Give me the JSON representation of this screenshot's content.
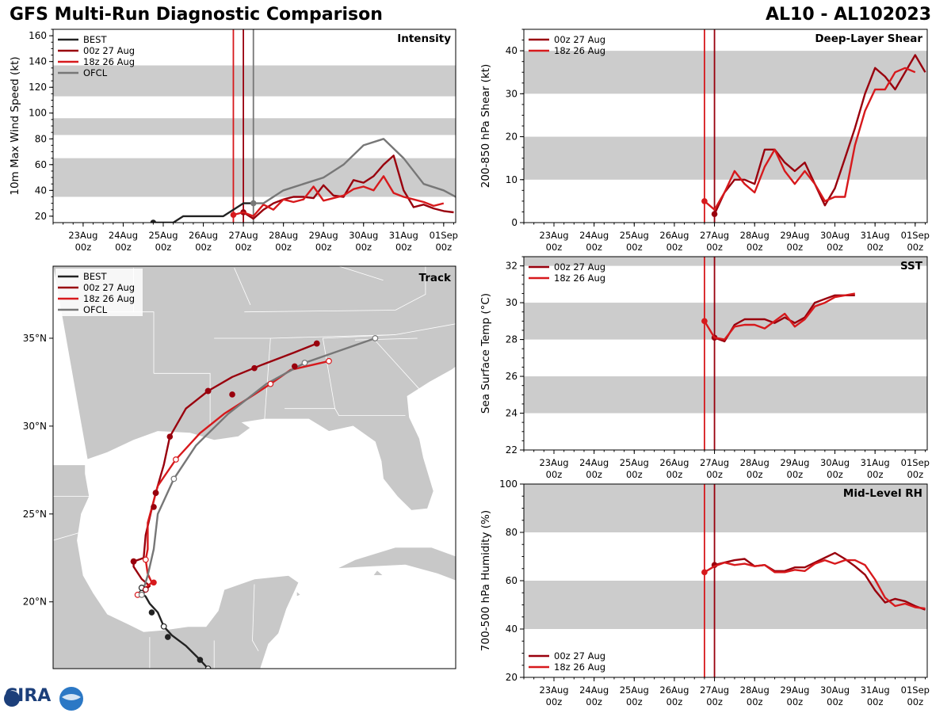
{
  "header": {
    "title_left": "GFS Multi-Run Diagnostic Comparison",
    "title_right": "AL10 - AL102023"
  },
  "logo_text": "CIRA",
  "colors": {
    "best": "#222222",
    "run00z": "#99000d",
    "run18z": "#d7191c",
    "ofcl": "#777777",
    "band": "#cccccc",
    "land": "#c8c8c8"
  },
  "time_axis": {
    "tick_labels": [
      "23Aug\n00z",
      "24Aug\n00z",
      "25Aug\n00z",
      "26Aug\n00z",
      "27Aug\n00z",
      "28Aug\n00z",
      "29Aug\n00z",
      "30Aug\n00z",
      "31Aug\n00z",
      "01Sep\n00z"
    ],
    "range_days": [
      -0.75,
      9.3
    ]
  },
  "chart_data": [
    {
      "id": "intensity",
      "type": "line",
      "title": "Intensity",
      "ylabel": "10m Max Wind Speed (kt)",
      "ylim": [
        15,
        165
      ],
      "yticks": [
        20,
        40,
        60,
        80,
        100,
        120,
        140,
        160
      ],
      "bands": [
        [
          35,
          65
        ],
        [
          83,
          96
        ],
        [
          113,
          137
        ]
      ],
      "vlines": [
        {
          "x": 3.75,
          "series": "run18z"
        },
        {
          "x": 4.0,
          "series": "run00z"
        },
        {
          "x": 4.25,
          "series": "ofcl"
        }
      ],
      "legend": [
        "BEST",
        "00z 27 Aug",
        "18z 26 Aug",
        "OFCL"
      ],
      "series": [
        {
          "name": "BEST",
          "key": "best",
          "x": [
            1.75,
            2.0,
            2.25,
            2.5,
            2.75,
            3.0,
            3.25,
            3.5,
            3.75,
            4.0,
            4.25
          ],
          "y": [
            15,
            15,
            15,
            20,
            20,
            20,
            20,
            20,
            25,
            30,
            30
          ]
        },
        {
          "name": "00z 27 Aug",
          "key": "run00z",
          "x": [
            4.0,
            4.25,
            4.5,
            4.75,
            5.0,
            5.25,
            5.5,
            5.75,
            6.0,
            6.25,
            6.5,
            6.75,
            7.0,
            7.25,
            7.5,
            7.75,
            8.0,
            8.25,
            8.5,
            8.75,
            9.0,
            9.25
          ],
          "y": [
            23,
            18,
            25,
            30,
            33,
            35,
            35,
            34,
            44,
            36,
            35,
            48,
            46,
            51,
            60,
            67,
            40,
            27,
            29,
            26,
            24,
            23
          ]
        },
        {
          "name": "18z 26 Aug",
          "key": "run18z",
          "x": [
            3.75,
            4.0,
            4.25,
            4.5,
            4.75,
            5.0,
            5.25,
            5.5,
            5.75,
            6.0,
            6.25,
            6.5,
            6.75,
            7.0,
            7.25,
            7.5,
            7.75,
            8.0,
            8.25,
            8.5,
            8.75,
            9.0
          ],
          "y": [
            21,
            23,
            20,
            29,
            25,
            33,
            31,
            33,
            43,
            32,
            34,
            36,
            41,
            43,
            40,
            51,
            38,
            35,
            33,
            31,
            28,
            30
          ]
        },
        {
          "name": "OFCL",
          "key": "ofcl",
          "x": [
            4.25,
            4.5,
            5.0,
            5.5,
            6.0,
            6.5,
            7.0,
            7.5,
            8.0,
            8.5,
            9.0,
            9.3
          ],
          "y": [
            30,
            30,
            40,
            45,
            50,
            60,
            75,
            80,
            65,
            45,
            40,
            35
          ]
        }
      ]
    },
    {
      "id": "shear",
      "type": "line",
      "title": "Deep-Layer Shear",
      "ylabel": "200-850 hPa Shear (kt)",
      "ylim": [
        0,
        45
      ],
      "yticks": [
        0,
        10,
        20,
        30,
        40
      ],
      "bands": [
        [
          10,
          20
        ],
        [
          30,
          40
        ]
      ],
      "vlines": [
        {
          "x": 3.75,
          "series": "run18z"
        },
        {
          "x": 4.0,
          "series": "run00z"
        }
      ],
      "legend": [
        "00z 27 Aug",
        "18z 26 Aug"
      ],
      "series": [
        {
          "name": "00z 27 Aug",
          "key": "run00z",
          "x": [
            4.0,
            4.25,
            4.5,
            4.75,
            5.0,
            5.25,
            5.5,
            5.75,
            6.0,
            6.25,
            6.5,
            6.75,
            7.0,
            7.25,
            7.5,
            7.75,
            8.0,
            8.25,
            8.5,
            8.75,
            9.0,
            9.25
          ],
          "y": [
            2,
            7,
            10,
            10,
            9,
            17,
            17,
            14,
            12,
            14,
            9,
            4,
            8,
            15,
            22,
            30,
            36,
            34,
            31,
            35,
            39,
            35
          ]
        },
        {
          "name": "18z 26 Aug",
          "key": "run18z",
          "x": [
            3.75,
            4.0,
            4.25,
            4.5,
            4.75,
            5.0,
            5.25,
            5.5,
            5.75,
            6.0,
            6.25,
            6.5,
            6.75,
            7.0,
            7.25,
            7.5,
            7.75,
            8.0,
            8.25,
            8.5,
            8.75,
            9.0
          ],
          "y": [
            5,
            3,
            7,
            12,
            9,
            7,
            13,
            17,
            12,
            9,
            12,
            9,
            5,
            6,
            6,
            18,
            26,
            31,
            31,
            35,
            36,
            35
          ]
        }
      ]
    },
    {
      "id": "sst",
      "type": "line",
      "title": "SST",
      "ylabel": "Sea Surface Temp (°C)",
      "ylim": [
        22,
        32.5
      ],
      "yticks": [
        22,
        24,
        26,
        28,
        30,
        32
      ],
      "bands": [
        [
          24,
          26
        ],
        [
          28,
          30
        ],
        [
          32,
          34
        ]
      ],
      "vlines": [
        {
          "x": 3.75,
          "series": "run18z"
        },
        {
          "x": 4.0,
          "series": "run00z"
        }
      ],
      "legend": [
        "00z 27 Aug",
        "18z 26 Aug"
      ],
      "series": [
        {
          "name": "00z 27 Aug",
          "key": "run00z",
          "x": [
            4.0,
            4.25,
            4.5,
            4.75,
            5.0,
            5.25,
            5.5,
            5.75,
            6.0,
            6.25,
            6.5,
            6.75,
            7.0,
            7.25,
            7.5
          ],
          "y": [
            28.1,
            27.9,
            28.8,
            29.1,
            29.1,
            29.1,
            28.9,
            29.2,
            28.9,
            29.2,
            30.0,
            30.2,
            30.4,
            30.4,
            30.4
          ]
        },
        {
          "name": "18z 26 Aug",
          "key": "run18z",
          "x": [
            3.75,
            4.0,
            4.25,
            4.5,
            4.75,
            5.0,
            5.25,
            5.5,
            5.75,
            6.0,
            6.25,
            6.5,
            6.75,
            7.0,
            7.25,
            7.5
          ],
          "y": [
            29.0,
            28.1,
            28.0,
            28.7,
            28.8,
            28.8,
            28.6,
            29.0,
            29.4,
            28.7,
            29.1,
            29.8,
            30.0,
            30.3,
            30.4,
            30.5
          ]
        }
      ]
    },
    {
      "id": "rh",
      "type": "line",
      "title": "Mid-Level RH",
      "ylabel": "700-500 hPa Humidity (%)",
      "ylim": [
        20,
        100
      ],
      "yticks": [
        20,
        40,
        60,
        80,
        100
      ],
      "bands": [
        [
          40,
          60
        ],
        [
          80,
          100
        ]
      ],
      "vlines": [
        {
          "x": 3.75,
          "series": "run18z"
        },
        {
          "x": 4.0,
          "series": "run00z"
        }
      ],
      "legend": [
        "00z 27 Aug",
        "18z 26 Aug"
      ],
      "legend_pos": "bottom-left",
      "series": [
        {
          "name": "00z 27 Aug",
          "key": "run00z",
          "x": [
            4.0,
            4.25,
            4.5,
            4.75,
            5.0,
            5.25,
            5.5,
            5.75,
            6.0,
            6.25,
            6.5,
            6.75,
            7.0,
            7.25,
            7.5,
            7.75,
            8.0,
            8.25,
            8.5,
            8.75,
            9.0,
            9.25
          ],
          "y": [
            66.5,
            67.5,
            68.5,
            69,
            66,
            66.5,
            64,
            64,
            65.5,
            65.5,
            67.5,
            69.5,
            71.5,
            69,
            66,
            62.5,
            56,
            51,
            52.5,
            51.5,
            49.5,
            48
          ]
        },
        {
          "name": "18z 26 Aug",
          "key": "run18z",
          "x": [
            3.75,
            4.0,
            4.25,
            4.5,
            4.75,
            5.0,
            5.25,
            5.5,
            5.75,
            6.0,
            6.25,
            6.5,
            6.75,
            7.0,
            7.25,
            7.5,
            7.75,
            8.0,
            8.25,
            8.5,
            8.75,
            9.0,
            9.25
          ],
          "y": [
            63.5,
            66,
            67.5,
            66.5,
            67,
            66,
            66.5,
            63.5,
            63.5,
            64.5,
            64,
            67,
            68.5,
            67,
            68.5,
            68.5,
            66.5,
            60.5,
            53,
            49.5,
            50.5,
            49,
            48.5
          ]
        }
      ]
    },
    {
      "id": "track",
      "type": "scatter",
      "title": "Track",
      "xlim_lon": [
        -99,
        -79
      ],
      "ylim_lat": [
        16.2,
        39.1
      ],
      "lat_ticks": [
        20,
        25,
        30,
        35
      ],
      "lat_labels": [
        "20°N",
        "25°N",
        "30°N",
        "35°N"
      ],
      "legend": [
        "BEST",
        "00z 27 Aug",
        "18z 26 Aug",
        "OFCL"
      ],
      "series": [
        {
          "name": "BEST",
          "key": "best",
          "points": [
            [
              -91.3,
              16.2
            ],
            [
              -91.7,
              16.7
            ],
            [
              -92.4,
              17.5
            ],
            [
              -93.1,
              18.1
            ],
            [
              -93.5,
              18.6
            ],
            [
              -93.8,
              19.4
            ],
            [
              -94.2,
              19.9
            ],
            [
              -94.4,
              20.3
            ],
            [
              -94.6,
              20.5
            ],
            [
              -94.6,
              20.8
            ]
          ]
        },
        {
          "name": "00z 27 Aug",
          "key": "run00z",
          "points": [
            [
              -94.4,
              20.7
            ],
            [
              -94.2,
              20.9
            ],
            [
              -94.6,
              21.3
            ],
            [
              -95.0,
              22.0
            ],
            [
              -95.0,
              22.3
            ],
            [
              -94.5,
              22.5
            ],
            [
              -94.4,
              23.8
            ],
            [
              -94.1,
              25.3
            ],
            [
              -93.9,
              26.2
            ],
            [
              -93.5,
              27.8
            ],
            [
              -93.2,
              29.4
            ],
            [
              -92.4,
              31.0
            ],
            [
              -91.3,
              32.0
            ],
            [
              -90.1,
              32.8
            ],
            [
              -88.6,
              33.5
            ],
            [
              -87.0,
              34.2
            ],
            [
              -85.9,
              34.7
            ]
          ]
        },
        {
          "name": "18z 26 Aug",
          "key": "run18z",
          "points": [
            [
              -94.8,
              20.4
            ],
            [
              -94.5,
              20.7
            ],
            [
              -94.1,
              21.1
            ],
            [
              -94.3,
              21.6
            ],
            [
              -94.4,
              22.4
            ],
            [
              -94.3,
              23.0
            ],
            [
              -94.3,
              24.5
            ],
            [
              -93.8,
              26.6
            ],
            [
              -92.9,
              28.1
            ],
            [
              -91.7,
              29.6
            ],
            [
              -90.5,
              30.7
            ],
            [
              -89.0,
              31.8
            ],
            [
              -88.2,
              32.4
            ],
            [
              -87.2,
              33.2
            ],
            [
              -85.3,
              33.7
            ]
          ]
        },
        {
          "name": "OFCL",
          "key": "ofcl",
          "points": [
            [
              -94.6,
              20.4
            ],
            [
              -94.3,
              21.5
            ],
            [
              -94.0,
              23.0
            ],
            [
              -93.8,
              25.0
            ],
            [
              -93.0,
              27.0
            ],
            [
              -91.9,
              28.9
            ],
            [
              -90.3,
              30.7
            ],
            [
              -88.4,
              32.4
            ],
            [
              -86.5,
              33.6
            ],
            [
              -83.0,
              35.0
            ]
          ]
        },
        {
          "name": "BEST markers",
          "key": "best",
          "markers": [
            [
              -94.1,
              19.4
            ],
            [
              -93.3,
              18.0
            ],
            [
              -91.7,
              16.7
            ]
          ]
        },
        {
          "name": "00z markers",
          "key": "run00z",
          "markers": [
            [
              -95.0,
              22.3
            ],
            [
              -94.0,
              25.4
            ],
            [
              -93.9,
              26.2
            ],
            [
              -93.2,
              29.4
            ],
            [
              -91.3,
              32.0
            ],
            [
              -90.1,
              31.8
            ],
            [
              -89.0,
              33.3
            ],
            [
              -87.0,
              33.4
            ],
            [
              -85.9,
              34.7
            ]
          ]
        },
        {
          "name": "18z markers",
          "key": "run18z",
          "markers": [
            [
              -94.0,
              21.1
            ]
          ]
        }
      ]
    }
  ]
}
